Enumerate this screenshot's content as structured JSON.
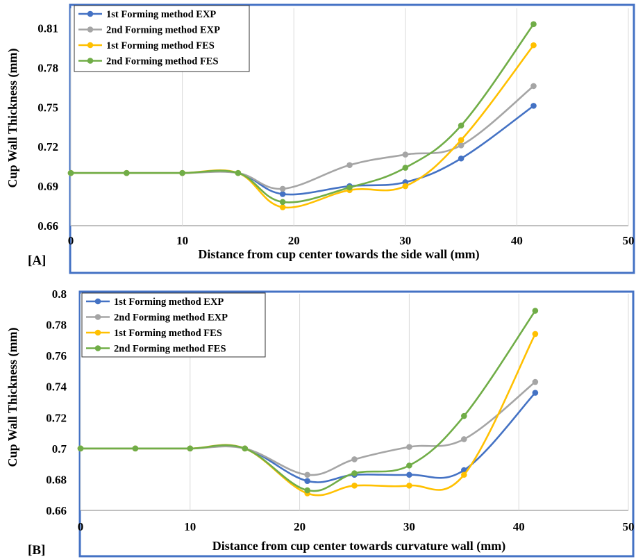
{
  "colors": {
    "frame": "#4472C4",
    "exp1": "#4472C4",
    "exp2": "#A5A5A5",
    "fes1": "#FFC000",
    "fes2": "#70AD47"
  },
  "chart_data": [
    {
      "type": "line",
      "panel_label": "[A]",
      "xlabel": "Distance from cup center towards the side wall (mm)",
      "ylabel": "Cup   Wall Thickness (mm)",
      "xlim": [
        0,
        50
      ],
      "ylim": [
        0.66,
        0.825
      ],
      "xticks": [
        0,
        10,
        20,
        30,
        40,
        50
      ],
      "yticks": [
        0.66,
        0.69,
        0.72,
        0.75,
        0.78,
        0.81
      ],
      "ytick_labels": [
        "0.66",
        "0.69",
        "0.72",
        "0.75",
        "0.78",
        "0.81"
      ],
      "legend_position": "top-left",
      "series": [
        {
          "name": "1st Forming method EXP",
          "color_key": "exp1",
          "x": [
            0,
            5,
            10,
            15,
            19,
            25,
            30,
            35,
            41.5
          ],
          "y": [
            0.7,
            0.7,
            0.7,
            0.7,
            0.684,
            0.69,
            0.693,
            0.711,
            0.751
          ]
        },
        {
          "name": "2nd Forming method EXP",
          "color_key": "exp2",
          "x": [
            0,
            5,
            10,
            15,
            19,
            25,
            30,
            35,
            41.5
          ],
          "y": [
            0.7,
            0.7,
            0.7,
            0.7,
            0.688,
            0.706,
            0.714,
            0.721,
            0.766
          ]
        },
        {
          "name": "1st Forming method FES",
          "color_key": "fes1",
          "x": [
            0,
            5,
            10,
            15,
            19,
            25,
            30,
            35,
            41.5
          ],
          "y": [
            0.7,
            0.7,
            0.7,
            0.7,
            0.674,
            0.687,
            0.69,
            0.725,
            0.797
          ]
        },
        {
          "name": "2nd Forming method FES",
          "color_key": "fes2",
          "x": [
            0,
            5,
            10,
            15,
            19,
            25,
            30,
            35,
            41.5
          ],
          "y": [
            0.7,
            0.7,
            0.7,
            0.7,
            0.678,
            0.689,
            0.704,
            0.736,
            0.813
          ]
        }
      ]
    },
    {
      "type": "line",
      "panel_label": "[B]",
      "xlabel": "Distance from cup center towards curvature wall  (mm)",
      "ylabel": "Cup  Wall Thickness (mm)",
      "xlim": [
        0,
        50
      ],
      "ylim": [
        0.66,
        0.8
      ],
      "xticks": [
        0,
        10,
        20,
        30,
        40,
        50
      ],
      "yticks": [
        0.66,
        0.68,
        0.7,
        0.72,
        0.74,
        0.76,
        0.78,
        0.8
      ],
      "ytick_labels": [
        "0.66",
        "0.68",
        "0.7",
        "0.72",
        "0.74",
        "0.76",
        "0.78",
        "0.8"
      ],
      "legend_position": "top-left",
      "series": [
        {
          "name": "1st Forming method EXP",
          "color_key": "exp1",
          "x": [
            0,
            5,
            10,
            15,
            20.7,
            25,
            30,
            35,
            41.5
          ],
          "y": [
            0.7,
            0.7,
            0.7,
            0.7,
            0.679,
            0.683,
            0.683,
            0.686,
            0.736
          ]
        },
        {
          "name": "2nd Forming method EXP",
          "color_key": "exp2",
          "x": [
            0,
            5,
            10,
            15,
            20.7,
            25,
            30,
            35,
            41.5
          ],
          "y": [
            0.7,
            0.7,
            0.7,
            0.7,
            0.683,
            0.693,
            0.701,
            0.706,
            0.743
          ]
        },
        {
          "name": "1st Forming method FES",
          "color_key": "fes1",
          "x": [
            0,
            5,
            10,
            15,
            20.7,
            25,
            30,
            35,
            41.5
          ],
          "y": [
            0.7,
            0.7,
            0.7,
            0.7,
            0.671,
            0.676,
            0.676,
            0.683,
            0.774
          ]
        },
        {
          "name": "2nd Forming method FES",
          "color_key": "fes2",
          "x": [
            0,
            5,
            10,
            15,
            20.7,
            25,
            30,
            35,
            41.5
          ],
          "y": [
            0.7,
            0.7,
            0.7,
            0.7,
            0.673,
            0.684,
            0.689,
            0.721,
            0.789
          ]
        }
      ]
    }
  ]
}
